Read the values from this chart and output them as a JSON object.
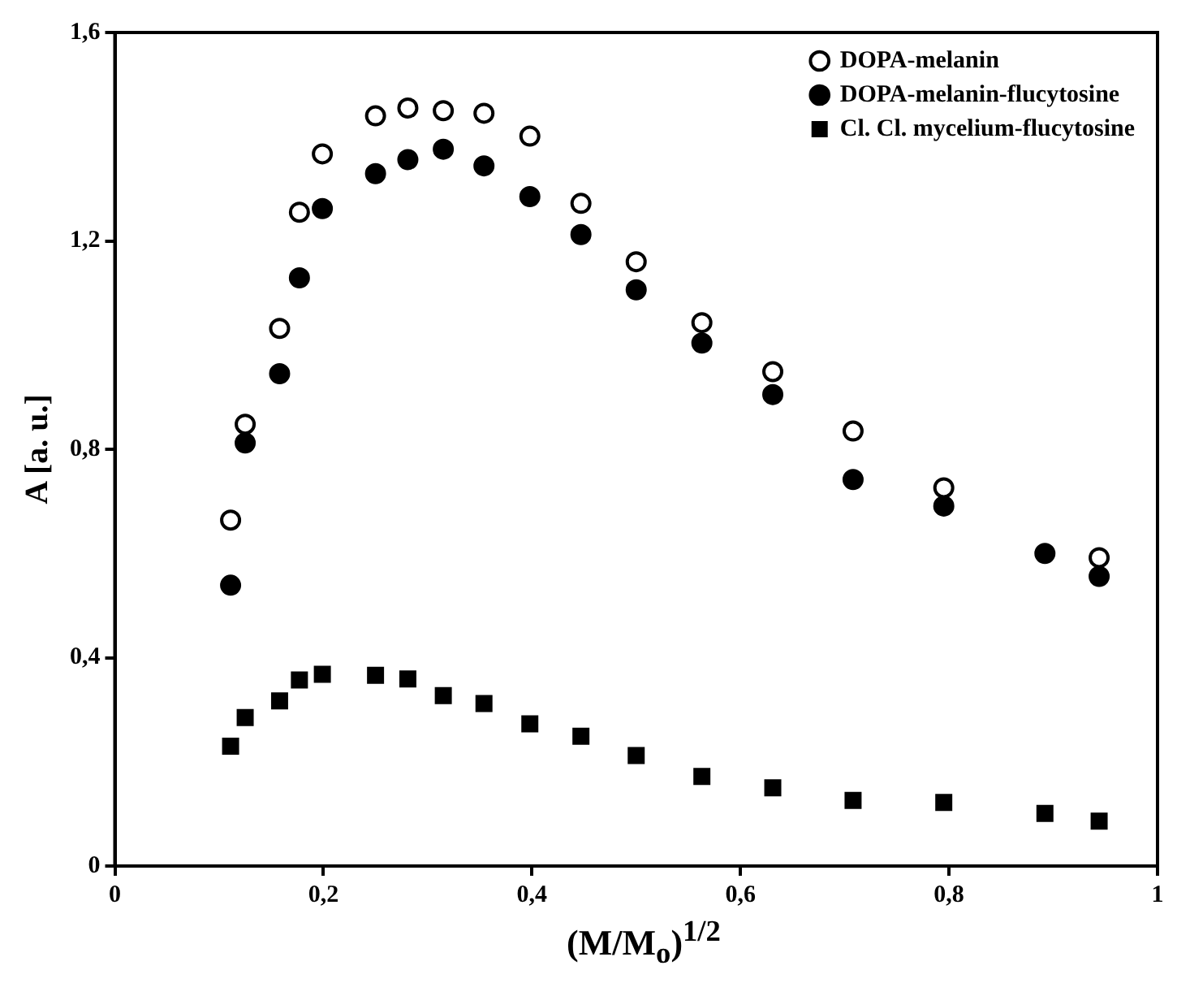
{
  "chart_data": {
    "type": "scatter",
    "xlabel": "(M/M$_{o}$)$^{1/2}$",
    "ylabel": "A [a. u.]",
    "x": [
      0.111,
      0.125,
      0.158,
      0.177,
      0.199,
      0.25,
      0.281,
      0.315,
      0.354,
      0.398,
      0.447,
      0.5,
      0.563,
      0.631,
      0.708,
      0.795,
      0.892,
      0.944
    ],
    "series": [
      {
        "name": "DOPA-melanin",
        "color": "#ffffff",
        "marker": "circle",
        "values": [
          0.664,
          0.848,
          1.032,
          1.255,
          1.367,
          1.44,
          1.455,
          1.45,
          1.445,
          1.401,
          1.272,
          1.16,
          1.043,
          0.949,
          0.835,
          0.726,
          null,
          0.592
        ]
      },
      {
        "name": "DOPA-melanin-flucytosine",
        "color": "#000000",
        "marker": "circle",
        "values": [
          0.539,
          0.812,
          0.945,
          1.129,
          1.262,
          1.329,
          1.356,
          1.376,
          1.344,
          1.285,
          1.212,
          1.106,
          1.004,
          0.905,
          0.742,
          0.691,
          0.6,
          0.556
        ]
      },
      {
        "name": "Cl. Cl. mycelium-flucytosine",
        "color": "#000000",
        "marker": "square",
        "values": [
          0.23,
          0.285,
          0.317,
          0.357,
          0.368,
          0.366,
          0.359,
          0.327,
          0.312,
          0.273,
          0.249,
          0.212,
          0.172,
          0.15,
          0.126,
          0.122,
          0.101,
          0.086
        ]
      }
    ],
    "xlim": [
      0,
      1
    ],
    "xticks": [
      0,
      {
        "value": 0.2,
        "label": "0,2"
      },
      {
        "value": 0.4,
        "label": "0,4"
      },
      {
        "value": 0.6,
        "label": "0,6"
      },
      {
        "value": 0.8,
        "label": "0,8"
      },
      1
    ],
    "ylim": [
      0,
      1.6
    ],
    "yticks": [
      0,
      {
        "value": 0.4,
        "label": "0,4"
      },
      {
        "value": 0.8,
        "label": "0,8"
      },
      {
        "value": 1.2,
        "label": "1,2"
      },
      {
        "value": 1.6,
        "label": "1,6"
      }
    ],
    "grid": false,
    "legend": "top right"
  }
}
